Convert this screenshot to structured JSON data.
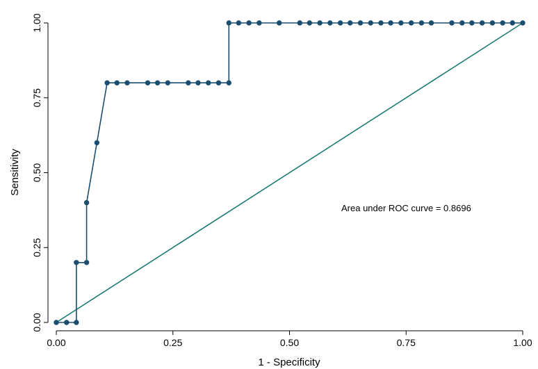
{
  "chart_data": {
    "type": "line",
    "title": "",
    "xlabel": "1 - Specificity",
    "ylabel": "Sensitivity",
    "xlim": [
      0,
      1
    ],
    "ylim": [
      0,
      1
    ],
    "x_ticks": [
      "0.00",
      "0.25",
      "0.50",
      "0.75",
      "1.00"
    ],
    "y_ticks": [
      "0.00",
      "0.25",
      "0.50",
      "0.75",
      "1.00"
    ],
    "grid": false,
    "legend": "none",
    "annotation": "Area under ROC curve = 0.8696",
    "colors": {
      "roc_curve": "#1a4d6e",
      "reference_line": "#1b7a72",
      "axis": "#000000"
    },
    "series": [
      {
        "points": [
          [
            0.0,
            0.0
          ],
          [
            0.022,
            0.0
          ],
          [
            0.043,
            0.0
          ],
          [
            0.043,
            0.2
          ],
          [
            0.065,
            0.2
          ],
          [
            0.065,
            0.4
          ],
          [
            0.087,
            0.6
          ],
          [
            0.109,
            0.8
          ],
          [
            0.13,
            0.8
          ],
          [
            0.152,
            0.8
          ],
          [
            0.196,
            0.8
          ],
          [
            0.217,
            0.8
          ],
          [
            0.239,
            0.8
          ],
          [
            0.283,
            0.8
          ],
          [
            0.304,
            0.8
          ],
          [
            0.326,
            0.8
          ],
          [
            0.348,
            0.8
          ],
          [
            0.37,
            0.8
          ],
          [
            0.37,
            1.0
          ],
          [
            0.391,
            1.0
          ],
          [
            0.413,
            1.0
          ],
          [
            0.435,
            1.0
          ],
          [
            0.478,
            1.0
          ],
          [
            0.522,
            1.0
          ],
          [
            0.543,
            1.0
          ],
          [
            0.565,
            1.0
          ],
          [
            0.587,
            1.0
          ],
          [
            0.609,
            1.0
          ],
          [
            0.63,
            1.0
          ],
          [
            0.652,
            1.0
          ],
          [
            0.674,
            1.0
          ],
          [
            0.696,
            1.0
          ],
          [
            0.717,
            1.0
          ],
          [
            0.739,
            1.0
          ],
          [
            0.761,
            1.0
          ],
          [
            0.783,
            1.0
          ],
          [
            0.804,
            1.0
          ],
          [
            0.848,
            1.0
          ],
          [
            0.87,
            1.0
          ],
          [
            0.891,
            1.0
          ],
          [
            0.913,
            1.0
          ],
          [
            0.935,
            1.0
          ],
          [
            0.957,
            1.0
          ],
          [
            0.978,
            1.0
          ],
          [
            1.0,
            1.0
          ]
        ]
      },
      {
        "points": [
          [
            0,
            0
          ],
          [
            1,
            1
          ]
        ]
      }
    ]
  }
}
